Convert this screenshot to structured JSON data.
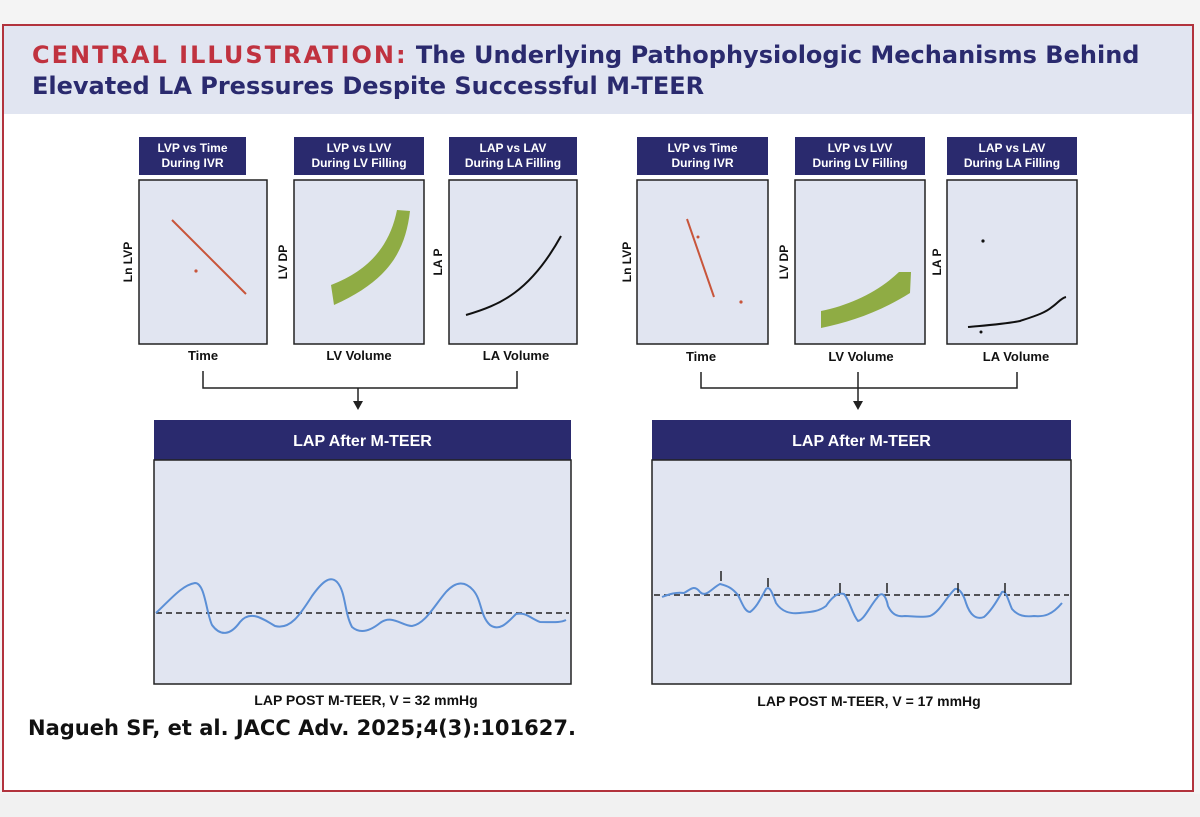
{
  "title": {
    "label": "CENTRAL ILLUSTRATION:",
    "text": " The Underlying Pathophysiologic Mechanisms Behind Elevated LA Pressures Despite Successful M-TEER"
  },
  "colors": {
    "navy": "#2a2a6e",
    "title_red": "#c0323f",
    "frame_red": "#b2333d",
    "panel_bg": "#e1e5f1",
    "green_band": "#8fac44",
    "red_line": "#c8553b",
    "trace_blue": "#5b8fd6"
  },
  "panels": [
    {
      "small_plots": [
        {
          "header": [
            "LVP vs Time",
            "During IVR"
          ],
          "ylabel": "Ln LVP",
          "xlabel": "Time"
        },
        {
          "header": [
            "LVP vs LVV",
            "During LV Filling"
          ],
          "ylabel": "LV DP",
          "xlabel": "LV Volume"
        },
        {
          "header": [
            "LAP vs LAV",
            "During LA Filling"
          ],
          "ylabel": "LA P",
          "xlabel": "LA Volume"
        }
      ],
      "main_plot": {
        "header": "LAP After M-TEER",
        "caption": "LAP POST M-TEER, V = 32 mmHg"
      }
    },
    {
      "small_plots": [
        {
          "header": [
            "LVP vs Time",
            "During IVR"
          ],
          "ylabel": "Ln LVP",
          "xlabel": "Time"
        },
        {
          "header": [
            "LVP vs LVV",
            "During LV Filling"
          ],
          "ylabel": "LV DP",
          "xlabel": "LV Volume"
        },
        {
          "header": [
            "LAP vs LAV",
            "During LA Filling"
          ],
          "ylabel": "LA P",
          "xlabel": "LA Volume"
        }
      ],
      "main_plot": {
        "header": "LAP After M-TEER",
        "caption": "LAP POST M-TEER, V = 17 mmHg"
      }
    }
  ],
  "citation": "Nagueh SF, et al. JACC Adv. 2025;4(3):101627."
}
